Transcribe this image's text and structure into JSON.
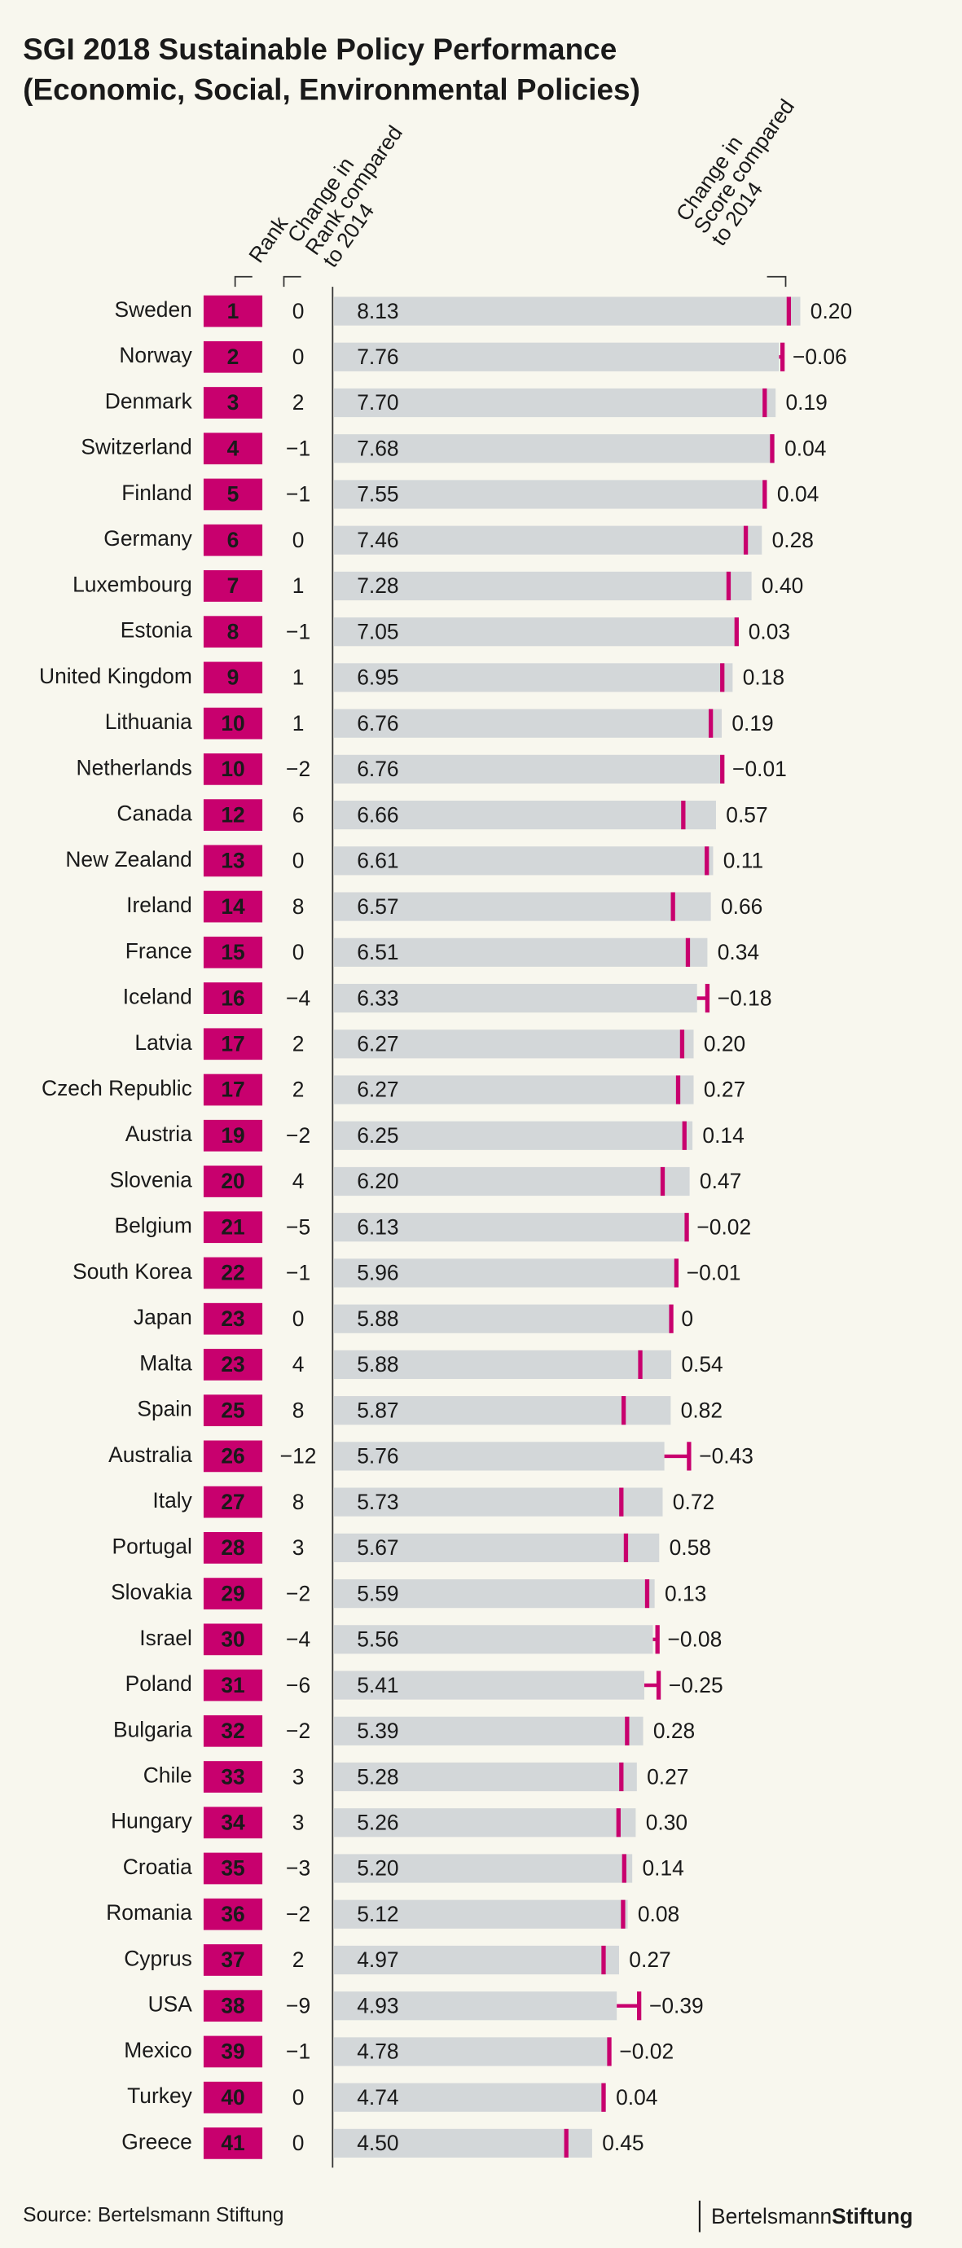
{
  "chart_data": {
    "type": "bar",
    "title": [
      "SGI 2018 Sustainable Policy Performance",
      "(Economic, Social, Environmental Policies)"
    ],
    "rank_header": "Rank",
    "rank_change_header": [
      "Change in",
      "Rank compared",
      "to 2014"
    ],
    "score_change_header": [
      "Change in",
      "Score compared",
      "to 2014"
    ],
    "source": "Source: Bertelsmann Stiftung",
    "logo": [
      "Bertelsmann",
      "Stiftung"
    ],
    "bar_color": "#d3d7d9",
    "accent_color": "#c8006e",
    "negative_label_color": "#8a1a5e",
    "xlim": [
      0,
      9
    ],
    "categories": [
      "Sweden",
      "Norway",
      "Denmark",
      "Switzerland",
      "Finland",
      "Germany",
      "Luxembourg",
      "Estonia",
      "United Kingdom",
      "Lithuania",
      "Netherlands",
      "Canada",
      "New Zealand",
      "Ireland",
      "France",
      "Iceland",
      "Latvia",
      "Czech Republic",
      "Austria",
      "Slovenia",
      "Belgium",
      "South Korea",
      "Japan",
      "Malta",
      "Spain",
      "Australia",
      "Italy",
      "Portugal",
      "Slovakia",
      "Israel",
      "Poland",
      "Bulgaria",
      "Chile",
      "Hungary",
      "Croatia",
      "Romania",
      "Cyprus",
      "USA",
      "Mexico",
      "Turkey",
      "Greece"
    ],
    "ranks": [
      1,
      2,
      3,
      4,
      5,
      6,
      7,
      8,
      9,
      10,
      10,
      12,
      13,
      14,
      15,
      16,
      17,
      17,
      19,
      20,
      21,
      22,
      23,
      23,
      25,
      26,
      27,
      28,
      29,
      30,
      31,
      32,
      33,
      34,
      35,
      36,
      37,
      38,
      39,
      40,
      41
    ],
    "rank_changes": [
      0,
      0,
      2,
      -1,
      -1,
      0,
      1,
      -1,
      1,
      1,
      -2,
      6,
      0,
      8,
      0,
      -4,
      2,
      2,
      -2,
      4,
      -5,
      -1,
      0,
      4,
      8,
      -12,
      8,
      3,
      -2,
      -4,
      -6,
      -2,
      3,
      3,
      -3,
      -2,
      2,
      -9,
      -1,
      0,
      0
    ],
    "rank_change_labels": [
      "0",
      "0",
      "2",
      "−1",
      "−1",
      "0",
      "1",
      "−1",
      "1",
      "1",
      "−2",
      "6",
      "0",
      "8",
      "0",
      "−4",
      "2",
      "2",
      "−2",
      "4",
      "−5",
      "−1",
      "0",
      "4",
      "8",
      "−12",
      "8",
      "3",
      "−2",
      "−4",
      "−6",
      "−2",
      "3",
      "3",
      "−3",
      "−2",
      "2",
      "−9",
      "−1",
      "0",
      "0"
    ],
    "scores": [
      8.13,
      7.76,
      7.7,
      7.68,
      7.55,
      7.46,
      7.28,
      7.05,
      6.95,
      6.76,
      6.76,
      6.66,
      6.61,
      6.57,
      6.51,
      6.33,
      6.27,
      6.27,
      6.25,
      6.2,
      6.13,
      5.96,
      5.88,
      5.88,
      5.87,
      5.76,
      5.73,
      5.67,
      5.59,
      5.56,
      5.41,
      5.39,
      5.28,
      5.26,
      5.2,
      5.12,
      4.97,
      4.93,
      4.78,
      4.74,
      4.5
    ],
    "score_labels": [
      "8.13",
      "7.76",
      "7.70",
      "7.68",
      "7.55",
      "7.46",
      "7.28",
      "7.05",
      "6.95",
      "6.76",
      "6.76",
      "6.66",
      "6.61",
      "6.57",
      "6.51",
      "6.33",
      "6.27",
      "6.27",
      "6.25",
      "6.20",
      "6.13",
      "5.96",
      "5.88",
      "5.88",
      "5.87",
      "5.76",
      "5.73",
      "5.67",
      "5.59",
      "5.56",
      "5.41",
      "5.39",
      "5.28",
      "5.26",
      "5.20",
      "5.12",
      "4.97",
      "4.93",
      "4.78",
      "4.74",
      "4.50"
    ],
    "score_changes": [
      0.2,
      -0.06,
      0.19,
      0.04,
      0.04,
      0.28,
      0.4,
      0.03,
      0.18,
      0.19,
      -0.01,
      0.57,
      0.11,
      0.66,
      0.34,
      -0.18,
      0.2,
      0.27,
      0.14,
      0.47,
      -0.02,
      -0.01,
      0,
      0.54,
      0.82,
      -0.43,
      0.72,
      0.58,
      0.13,
      -0.08,
      -0.25,
      0.28,
      0.27,
      0.3,
      0.14,
      0.08,
      0.27,
      -0.39,
      -0.02,
      0.04,
      0.45
    ],
    "score_change_labels": [
      "0.20",
      "−0.06",
      "0.19",
      "0.04",
      "0.04",
      "0.28",
      "0.40",
      "0.03",
      "0.18",
      "0.19",
      "−0.01",
      "0.57",
      "0.11",
      "0.66",
      "0.34",
      "−0.18",
      "0.20",
      "0.27",
      "0.14",
      "0.47",
      "−0.02",
      "−0.01",
      "0",
      "0.54",
      "0.82",
      "−0.43",
      "0.72",
      "0.58",
      "0.13",
      "−0.08",
      "−0.25",
      "0.28",
      "0.27",
      "0.30",
      "0.14",
      "0.08",
      "0.27",
      "−0.39",
      "−0.02",
      "0.04",
      "0.45"
    ]
  }
}
